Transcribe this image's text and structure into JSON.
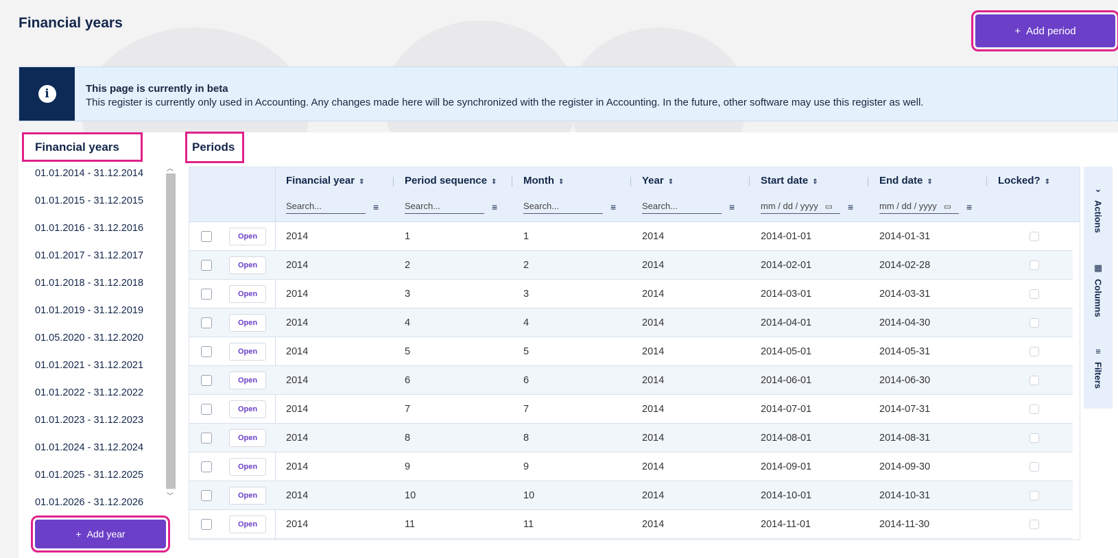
{
  "page": {
    "title": "Financial years"
  },
  "header": {
    "add_period_label": "Add period",
    "add_period_icon": "plus-icon"
  },
  "banner": {
    "title": "This page is currently in beta",
    "text": "This register is currently only used in Accounting. Any changes made here will be synchronized with the register in Accounting. In the future, other software may use this register as well.",
    "icon": "info-icon"
  },
  "left_panel": {
    "title": "Financial years",
    "years": [
      "01.01.2014 - 31.12.2014",
      "01.01.2015 - 31.12.2015",
      "01.01.2016 - 31.12.2016",
      "01.01.2017 - 31.12.2017",
      "01.01.2018 - 31.12.2018",
      "01.01.2019 - 31.12.2019",
      "01.05.2020 - 31.12.2020",
      "01.01.2021 - 31.12.2021",
      "01.01.2022 - 31.12.2022",
      "01.01.2023 - 31.12.2023",
      "01.01.2024 - 31.12.2024",
      "01.01.2025 - 31.12.2025",
      "01.01.2026 - 31.12.2026"
    ],
    "add_year_label": "Add year"
  },
  "periods": {
    "title": "Periods",
    "columns": [
      {
        "label": "Financial year",
        "search": "Search..."
      },
      {
        "label": "Period sequence",
        "search": "Search..."
      },
      {
        "label": "Month",
        "search": "Search..."
      },
      {
        "label": "Year",
        "search": "Search..."
      },
      {
        "label": "Start date",
        "search": "mm / dd / yyyy"
      },
      {
        "label": "End date",
        "search": "mm / dd / yyyy"
      },
      {
        "label": "Locked?",
        "search": ""
      }
    ],
    "status_label": "Open",
    "rows": [
      [
        "2014",
        "1",
        "1",
        "2014",
        "2014-01-01",
        "2014-01-31"
      ],
      [
        "2014",
        "2",
        "2",
        "2014",
        "2014-02-01",
        "2014-02-28"
      ],
      [
        "2014",
        "3",
        "3",
        "2014",
        "2014-03-01",
        "2014-03-31"
      ],
      [
        "2014",
        "4",
        "4",
        "2014",
        "2014-04-01",
        "2014-04-30"
      ],
      [
        "2014",
        "5",
        "5",
        "2014",
        "2014-05-01",
        "2014-05-31"
      ],
      [
        "2014",
        "6",
        "6",
        "2014",
        "2014-06-01",
        "2014-06-30"
      ],
      [
        "2014",
        "7",
        "7",
        "2014",
        "2014-07-01",
        "2014-07-31"
      ],
      [
        "2014",
        "8",
        "8",
        "2014",
        "2014-08-01",
        "2014-08-31"
      ],
      [
        "2014",
        "9",
        "9",
        "2014",
        "2014-09-01",
        "2014-09-30"
      ],
      [
        "2014",
        "10",
        "10",
        "2014",
        "2014-10-01",
        "2014-10-31"
      ],
      [
        "2014",
        "11",
        "11",
        "2014",
        "2014-11-01",
        "2014-11-30"
      ]
    ],
    "side_tools": [
      "Actions",
      "Columns",
      "Filters"
    ]
  },
  "colors": {
    "accent": "#6b3fc8",
    "navy": "#13264a",
    "highlight": "#e0218a"
  }
}
